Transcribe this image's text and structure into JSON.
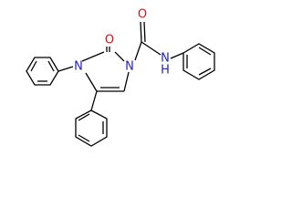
{
  "atoms": [
    {
      "label": "O"
    },
    {
      "label": "O"
    },
    {
      "label": "N"
    },
    {
      "label": "N"
    },
    {
      "label": "N"
    },
    {
      "label": "H"
    }
  ]
}
